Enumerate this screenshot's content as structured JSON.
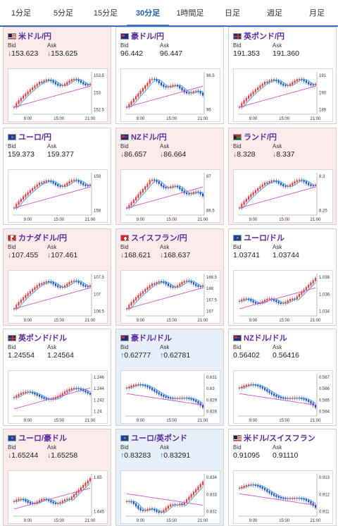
{
  "tabs": [
    "1分足",
    "5分足",
    "15分足",
    "30分足",
    "1時間足",
    "日足",
    "週足",
    "月足"
  ],
  "active_tab": 3,
  "x_ticks": [
    "9:00",
    "15:00",
    "21:00"
  ],
  "labels": {
    "bid": "Bid",
    "ask": "Ask"
  },
  "cards": [
    {
      "pair": "米ドル/円",
      "flag": "us",
      "trend": "down",
      "bid": "153.623",
      "ask": "153.625",
      "yticks": [
        "153.5",
        "153",
        "152.5"
      ],
      "shape": "up"
    },
    {
      "pair": "豪ドル/円",
      "flag": "au",
      "trend": "flat",
      "bid": "96.442",
      "ask": "96.447",
      "yticks": [
        "96.5",
        "96"
      ],
      "shape": "hump"
    },
    {
      "pair": "英ポンド/円",
      "flag": "uk",
      "trend": "flat",
      "bid": "191.353",
      "ask": "191.360",
      "yticks": [
        "191",
        "190",
        "189"
      ],
      "shape": "up"
    },
    {
      "pair": "ユーロ/円",
      "flag": "eu",
      "trend": "flat",
      "bid": "159.373",
      "ask": "159.377",
      "yticks": [
        "159",
        "158"
      ],
      "shape": "up"
    },
    {
      "pair": "NZドル/円",
      "flag": "nz",
      "trend": "down",
      "bid": "86.657",
      "ask": "86.664",
      "yticks": [
        "87",
        "86.5"
      ],
      "shape": "hump"
    },
    {
      "pair": "ランド/円",
      "flag": "za",
      "trend": "down",
      "bid": "8.328",
      "ask": "8.337",
      "yticks": [
        "8.3",
        "8.25"
      ],
      "shape": "up"
    },
    {
      "pair": "カナダドル/円",
      "flag": "ca",
      "trend": "down",
      "bid": "107.455",
      "ask": "107.461",
      "yticks": [
        "107.5",
        "107",
        "106.5"
      ],
      "shape": "up"
    },
    {
      "pair": "スイスフラン/円",
      "flag": "ch",
      "trend": "down",
      "bid": "168.621",
      "ask": "168.637",
      "yticks": [
        "168.5",
        "168",
        "167.5",
        "167"
      ],
      "shape": "up"
    },
    {
      "pair": "ユーロ/ドル",
      "flag": "eu",
      "trend": "flat",
      "bid": "1.03741",
      "ask": "1.03744",
      "yticks": [
        "1.038",
        "1.036",
        "1.034"
      ],
      "shape": "upLate"
    },
    {
      "pair": "英ポンド/ドル",
      "flag": "uk",
      "trend": "flat",
      "bid": "1.24554",
      "ask": "1.24564",
      "yticks": [
        "1.246",
        "1.244",
        "1.242",
        "1.24"
      ],
      "shape": "flatUp"
    },
    {
      "pair": "豪ドル/ドル",
      "flag": "au",
      "trend": "up",
      "bid": "0.62777",
      "ask": "0.62781",
      "yticks": [
        "0.631",
        "0.63",
        "0.629",
        "0.628"
      ],
      "shape": "down"
    },
    {
      "pair": "NZドル/ドル",
      "flag": "nz",
      "trend": "flat",
      "bid": "0.56402",
      "ask": "0.56416",
      "yticks": [
        "0.567",
        "0.566",
        "0.565",
        "0.564"
      ],
      "shape": "down"
    },
    {
      "pair": "ユーロ/豪ドル",
      "flag": "eu",
      "trend": "down",
      "bid": "1.65244",
      "ask": "1.65258",
      "yticks": [
        "1.65",
        "1.645"
      ],
      "shape": "upLate"
    },
    {
      "pair": "ユーロ/英ポンド",
      "flag": "eu",
      "trend": "up",
      "bid": "0.83283",
      "ask": "0.83291",
      "yticks": [
        "0.834",
        "0.833",
        "0.832"
      ],
      "shape": "vdip"
    },
    {
      "pair": "米ドル/スイスフラン",
      "flag": "us",
      "trend": "flat",
      "bid": "0.91095",
      "ask": "0.91110",
      "yticks": [
        "0.913",
        "0.912",
        "0.911"
      ],
      "shape": "down"
    }
  ],
  "colors": {
    "accent": "#3a6ec4",
    "title": "#5a2aa0",
    "down": "#d03030",
    "up": "#2060c0",
    "candle_up": "#e04040",
    "candle_down": "#2050c0",
    "ma_short": "#40a0d0",
    "ma_long": "#d050d0"
  }
}
